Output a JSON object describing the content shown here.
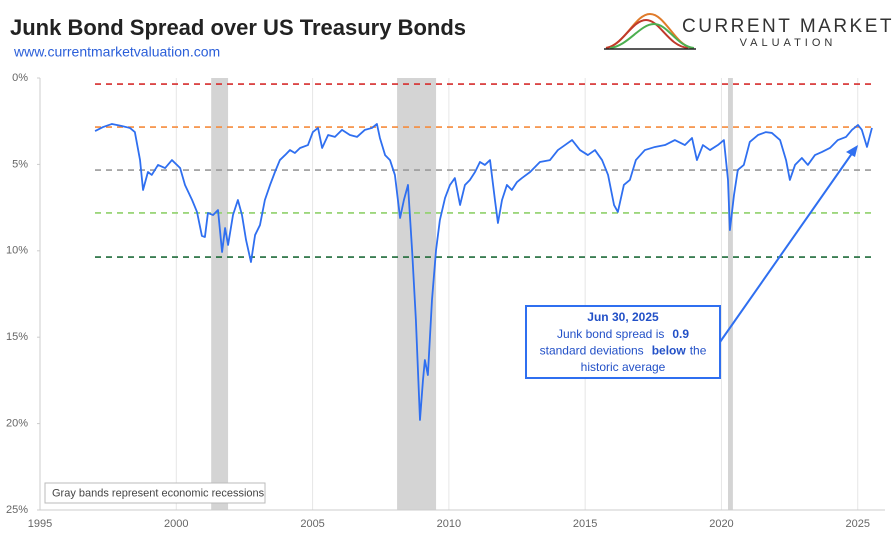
{
  "chart_data": {
    "type": "line",
    "title": "Junk Bond Spread over US Treasury Bonds",
    "subtitle": "www.currentmarketvaluation.com",
    "logo": {
      "line1": "CURRENT MARKET",
      "line2": "VALUATION"
    },
    "x": [
      1997.02,
      1997.31,
      1997.64,
      1998.0,
      1998.3,
      1998.48,
      1998.67,
      1998.78,
      1998.96,
      1999.1,
      1999.33,
      1999.59,
      1999.84,
      2000.14,
      2000.32,
      2000.58,
      2000.76,
      2000.94,
      2001.05,
      2001.16,
      2001.35,
      2001.53,
      2001.68,
      2001.79,
      2001.9,
      2002.08,
      2002.26,
      2002.41,
      2002.56,
      2002.74,
      2002.89,
      2003.07,
      2003.25,
      2003.44,
      2003.62,
      2003.8,
      2003.99,
      2004.17,
      2004.35,
      2004.54,
      2004.83,
      2005.01,
      2005.2,
      2005.35,
      2005.57,
      2005.82,
      2006.08,
      2006.37,
      2006.63,
      2006.92,
      2007.18,
      2007.36,
      2007.47,
      2007.66,
      2007.84,
      2008.02,
      2008.21,
      2008.35,
      2008.5,
      2008.65,
      2008.79,
      2008.94,
      2009.05,
      2009.12,
      2009.23,
      2009.38,
      2009.53,
      2009.67,
      2009.86,
      2010.04,
      2010.22,
      2010.41,
      2010.59,
      2010.77,
      2010.96,
      2011.14,
      2011.32,
      2011.51,
      2011.69,
      2011.8,
      2011.95,
      2012.13,
      2012.31,
      2012.5,
      2012.68,
      2012.98,
      2013.34,
      2013.71,
      2014.0,
      2014.26,
      2014.52,
      2014.81,
      2015.1,
      2015.36,
      2015.62,
      2015.84,
      2016.06,
      2016.2,
      2016.42,
      2016.64,
      2016.86,
      2017.19,
      2017.56,
      2017.93,
      2018.29,
      2018.66,
      2018.92,
      2019.1,
      2019.32,
      2019.58,
      2019.87,
      2020.09,
      2020.24,
      2020.31,
      2020.46,
      2020.6,
      2020.82,
      2021.04,
      2021.34,
      2021.63,
      2021.85,
      2022.15,
      2022.37,
      2022.51,
      2022.7,
      2022.95,
      2023.17,
      2023.43,
      2023.69,
      2023.98,
      2024.27,
      2024.57,
      2024.79,
      2025.01,
      2025.15,
      2025.34,
      2025.52
    ],
    "values": [
      3.07,
      2.84,
      2.66,
      2.78,
      2.89,
      3.13,
      4.75,
      6.48,
      5.44,
      5.61,
      5.03,
      5.21,
      4.75,
      5.21,
      6.19,
      7.06,
      7.75,
      9.14,
      9.2,
      7.81,
      7.93,
      7.64,
      10.07,
      8.68,
      9.66,
      7.93,
      7.06,
      7.93,
      9.38,
      10.65,
      9.09,
      8.51,
      7.06,
      6.19,
      5.44,
      4.75,
      4.46,
      4.17,
      4.34,
      4.05,
      3.88,
      3.13,
      2.89,
      4.05,
      3.3,
      3.41,
      3.0,
      3.3,
      3.41,
      3.0,
      2.89,
      2.66,
      3.47,
      4.46,
      4.75,
      5.61,
      8.1,
      7.06,
      6.19,
      9.95,
      14.0,
      19.79,
      17.48,
      16.32,
      17.19,
      12.85,
      9.95,
      8.22,
      6.94,
      6.19,
      5.79,
      7.35,
      6.19,
      5.9,
      5.44,
      4.86,
      5.03,
      4.75,
      7.06,
      8.39,
      7.06,
      6.19,
      6.48,
      6.02,
      5.79,
      5.44,
      4.86,
      4.75,
      4.17,
      3.88,
      3.59,
      4.17,
      4.46,
      4.17,
      4.75,
      5.61,
      7.35,
      7.75,
      6.19,
      5.9,
      4.75,
      4.17,
      3.99,
      3.88,
      3.59,
      3.88,
      3.47,
      4.75,
      3.88,
      4.17,
      3.88,
      3.59,
      5.9,
      8.8,
      6.77,
      5.32,
      5.03,
      3.7,
      3.3,
      3.13,
      3.18,
      3.59,
      4.75,
      5.9,
      5.03,
      4.63,
      5.03,
      4.46,
      4.28,
      4.05,
      3.59,
      3.41,
      3.0,
      2.72,
      3.0,
      3.99,
      2.89
    ],
    "color": "#2f6ff0",
    "xlim": [
      1995,
      2026
    ],
    "xticks": [
      1995,
      2000,
      2005,
      2010,
      2015,
      2020,
      2025
    ],
    "ylim": [
      0,
      25
    ],
    "y_inverted": true,
    "yticks": [
      {
        "value": 0,
        "label": "0%"
      },
      {
        "value": 5,
        "label": "5%"
      },
      {
        "value": 10,
        "label": "10%"
      },
      {
        "value": 15,
        "label": "15%"
      },
      {
        "value": 20,
        "label": "20%"
      },
      {
        "value": 25,
        "label": "25%"
      }
    ],
    "reference_lines": [
      {
        "value": 0.35,
        "color": "#d62d2d"
      },
      {
        "value": 2.84,
        "color": "#f58b3c"
      },
      {
        "value": 5.33,
        "color": "#9a9a9a"
      },
      {
        "value": 7.81,
        "color": "#8fd16a"
      },
      {
        "value": 10.36,
        "color": "#1f6b3a"
      }
    ],
    "recessions": [
      [
        2001.28,
        2001.9
      ],
      [
        2008.1,
        2009.53
      ],
      [
        2020.24,
        2020.42
      ]
    ],
    "recession_color": "#d4d4d4",
    "recession_note": "Gray bands represent economic recessions",
    "annotation": {
      "title": "Jun 30, 2025",
      "lines": [
        [
          {
            "text": "Junk bond spread is"
          },
          {
            "text": "0.9",
            "bold": true
          }
        ],
        [
          {
            "text": "standard deviations"
          },
          {
            "text": "below",
            "bold": true
          },
          {
            "text": "the"
          }
        ],
        [
          {
            "text": "historic average"
          }
        ]
      ]
    }
  }
}
